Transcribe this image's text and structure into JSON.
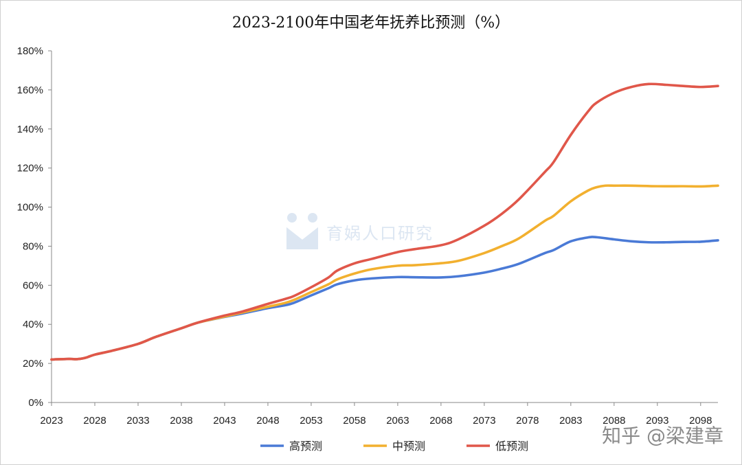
{
  "title": "2023-2100年中国老年抚养比预测（%）",
  "watermark_text": "育娲人口研究",
  "credit_text": "知乎 @梁建章",
  "colors": {
    "high": "#4a7ad6",
    "medium": "#f2b02f",
    "low": "#e0574a",
    "axis": "#888888"
  },
  "chart_data": {
    "type": "line",
    "title": "2023-2100年中国老年抚养比预测（%）",
    "ylim": [
      0,
      180
    ],
    "y_ticks": [
      "0%",
      "20%",
      "40%",
      "60%",
      "80%",
      "100%",
      "120%",
      "140%",
      "160%",
      "180%"
    ],
    "x_ticks": [
      "2023",
      "2028",
      "2033",
      "2038",
      "2043",
      "2048",
      "2053",
      "2058",
      "2063",
      "2068",
      "2073",
      "2078",
      "2083",
      "2088",
      "2093",
      "2098"
    ],
    "xlim": [
      2023,
      2100
    ],
    "grid": false,
    "legend_position": "bottom",
    "series": [
      {
        "name": "高预测",
        "color_key": "high",
        "points": [
          [
            2023,
            22
          ],
          [
            2025,
            22.3
          ],
          [
            2026,
            22.2
          ],
          [
            2027,
            23
          ],
          [
            2028,
            24.5
          ],
          [
            2030,
            26.5
          ],
          [
            2033,
            30
          ],
          [
            2035,
            33.5
          ],
          [
            2038,
            38
          ],
          [
            2040,
            41
          ],
          [
            2043,
            43.8
          ],
          [
            2045,
            45.5
          ],
          [
            2048,
            48.3
          ],
          [
            2050,
            49.8
          ],
          [
            2051,
            51
          ],
          [
            2053,
            54.8
          ],
          [
            2055,
            58.5
          ],
          [
            2056,
            60.5
          ],
          [
            2058,
            62.5
          ],
          [
            2060,
            63.5
          ],
          [
            2063,
            64.2
          ],
          [
            2065,
            64.1
          ],
          [
            2068,
            64
          ],
          [
            2070,
            64.6
          ],
          [
            2073,
            66.5
          ],
          [
            2075,
            68.5
          ],
          [
            2077,
            71
          ],
          [
            2080,
            76.5
          ],
          [
            2081,
            78
          ],
          [
            2083,
            82.5
          ],
          [
            2085,
            84.5
          ],
          [
            2086,
            84.6
          ],
          [
            2088,
            83.5
          ],
          [
            2090,
            82.5
          ],
          [
            2092,
            82
          ],
          [
            2094,
            82
          ],
          [
            2096,
            82.2
          ],
          [
            2098,
            82.3
          ],
          [
            2100,
            83
          ]
        ]
      },
      {
        "name": "中预测",
        "color_key": "medium",
        "points": [
          [
            2023,
            22
          ],
          [
            2025,
            22.3
          ],
          [
            2026,
            22.2
          ],
          [
            2027,
            23
          ],
          [
            2028,
            24.5
          ],
          [
            2030,
            26.5
          ],
          [
            2033,
            30
          ],
          [
            2035,
            33.5
          ],
          [
            2038,
            38
          ],
          [
            2040,
            41
          ],
          [
            2043,
            44
          ],
          [
            2045,
            46
          ],
          [
            2048,
            49
          ],
          [
            2050,
            51
          ],
          [
            2051,
            52.5
          ],
          [
            2053,
            56.5
          ],
          [
            2055,
            60.5
          ],
          [
            2056,
            63
          ],
          [
            2058,
            66
          ],
          [
            2060,
            68.2
          ],
          [
            2063,
            70
          ],
          [
            2065,
            70.3
          ],
          [
            2068,
            71.3
          ],
          [
            2070,
            72.5
          ],
          [
            2073,
            76.5
          ],
          [
            2075,
            80
          ],
          [
            2077,
            84
          ],
          [
            2080,
            93
          ],
          [
            2081,
            95.5
          ],
          [
            2083,
            103
          ],
          [
            2085,
            108.5
          ],
          [
            2086,
            110.2
          ],
          [
            2087,
            111
          ],
          [
            2088,
            111
          ],
          [
            2090,
            111
          ],
          [
            2093,
            110.7
          ],
          [
            2096,
            110.7
          ],
          [
            2098,
            110.6
          ],
          [
            2100,
            111
          ]
        ]
      },
      {
        "name": "低预测",
        "color_key": "low",
        "points": [
          [
            2023,
            22
          ],
          [
            2025,
            22.3
          ],
          [
            2026,
            22.2
          ],
          [
            2027,
            23
          ],
          [
            2028,
            24.5
          ],
          [
            2030,
            26.5
          ],
          [
            2033,
            30
          ],
          [
            2035,
            33.5
          ],
          [
            2038,
            38
          ],
          [
            2040,
            41
          ],
          [
            2043,
            44.5
          ],
          [
            2045,
            46.5
          ],
          [
            2048,
            50.5
          ],
          [
            2050,
            53
          ],
          [
            2051,
            54.5
          ],
          [
            2053,
            59
          ],
          [
            2055,
            64
          ],
          [
            2056,
            67.5
          ],
          [
            2058,
            71.2
          ],
          [
            2060,
            73.5
          ],
          [
            2063,
            77
          ],
          [
            2065,
            78.5
          ],
          [
            2068,
            80.5
          ],
          [
            2070,
            83.5
          ],
          [
            2073,
            90.5
          ],
          [
            2075,
            96.5
          ],
          [
            2077,
            104
          ],
          [
            2080,
            118
          ],
          [
            2081,
            123
          ],
          [
            2083,
            137
          ],
          [
            2085,
            149
          ],
          [
            2086,
            153.5
          ],
          [
            2088,
            158.5
          ],
          [
            2090,
            161.5
          ],
          [
            2092,
            163
          ],
          [
            2094,
            162.6
          ],
          [
            2096,
            162
          ],
          [
            2098,
            161.5
          ],
          [
            2100,
            162
          ]
        ]
      }
    ]
  }
}
